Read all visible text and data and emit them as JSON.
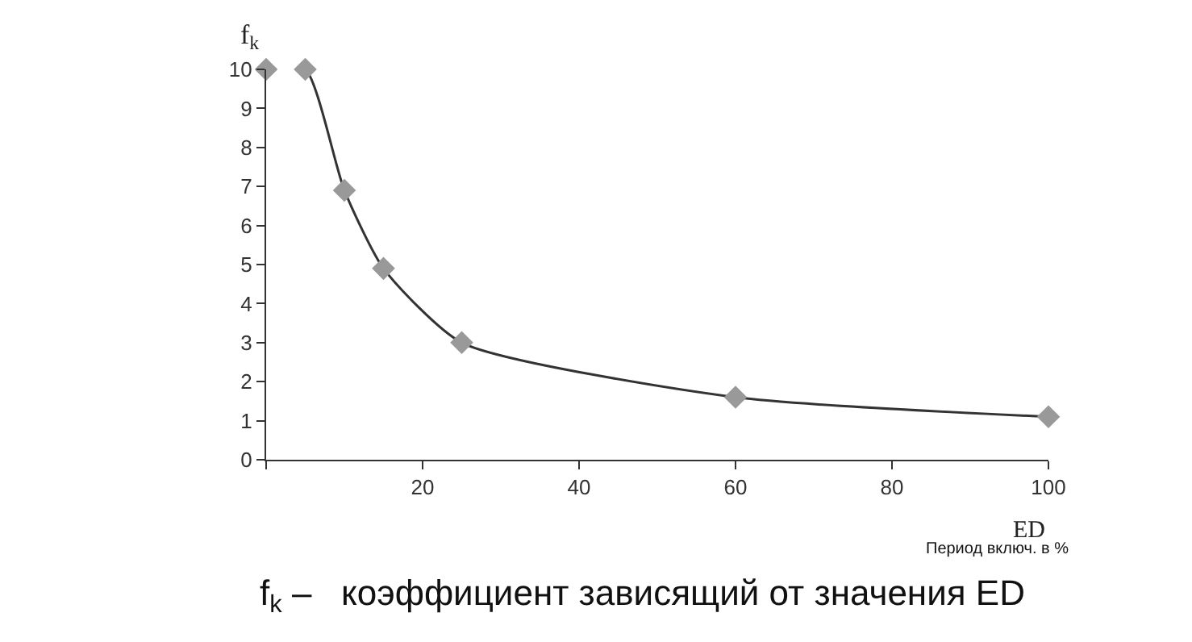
{
  "chart_data": {
    "type": "line",
    "x": [
      0,
      5,
      10,
      15,
      25,
      60,
      100
    ],
    "series": [
      {
        "color": "#333333",
        "values": [
          10,
          10,
          6.9,
          4.9,
          3.0,
          1.6,
          1.1
        ]
      }
    ],
    "xlim": [
      0,
      100
    ],
    "xticks": [
      {
        "value": 0,
        "label": null
      },
      20,
      40,
      60,
      80,
      100
    ],
    "ylim": [
      0,
      10
    ],
    "yticks": [
      0,
      1,
      2,
      3,
      4,
      5,
      6,
      7,
      8,
      9,
      10
    ],
    "xlabel": "ED",
    "ylabel": "f$_{k}$",
    "annotations": [
      "Период включ. в %",
      "f$_{k}$ –   коэффициент зависящий от значения ED"
    ],
    "marker": "diamond",
    "line_style": "solid"
  }
}
